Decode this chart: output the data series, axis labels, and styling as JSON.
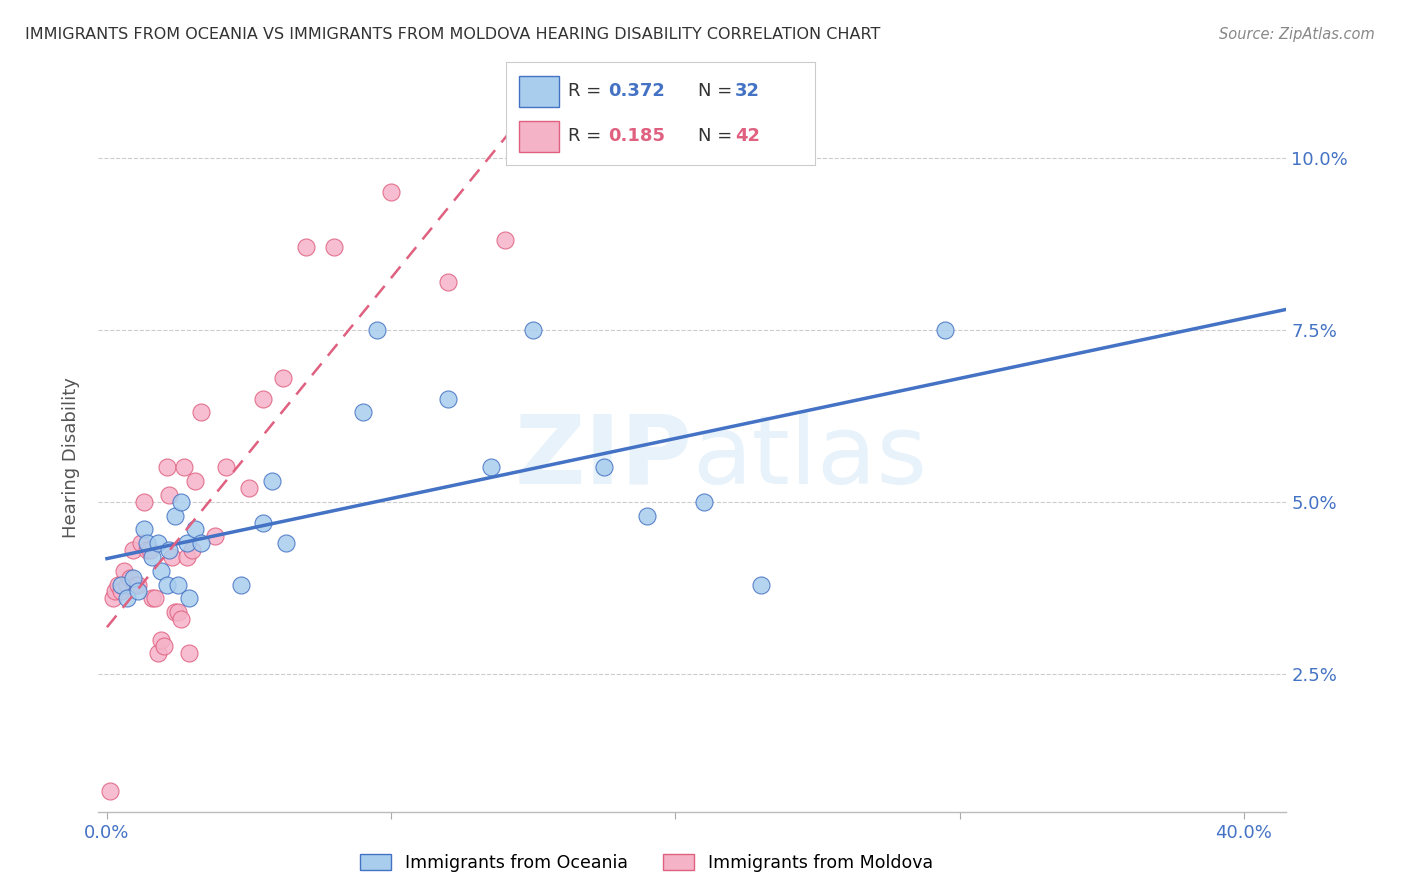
{
  "title": "IMMIGRANTS FROM OCEANIA VS IMMIGRANTS FROM MOLDOVA HEARING DISABILITY CORRELATION CHART",
  "source": "Source: ZipAtlas.com",
  "ylabel": "Hearing Disability",
  "watermark": "ZIPatlas",
  "legend_r1": "0.372",
  "legend_n1": "32",
  "legend_r2": "0.185",
  "legend_n2": "42",
  "color_oceania": "#A8CDED",
  "color_moldova": "#F5B3C8",
  "color_line_oceania": "#4472C4",
  "color_line_moldova": "#E06080",
  "ymin": 0.005,
  "ymax": 0.108,
  "xmin": -0.003,
  "xmax": 0.415,
  "yticks": [
    0.025,
    0.05,
    0.075,
    0.1
  ],
  "ytick_labels": [
    "2.5%",
    "5.0%",
    "7.5%",
    "10.0%"
  ],
  "xticks": [
    0.0,
    0.1,
    0.2,
    0.3,
    0.4
  ],
  "xtick_labels": [
    "0.0%",
    "",
    "",
    "",
    "40.0%"
  ],
  "oceania_x": [
    0.005,
    0.007,
    0.009,
    0.011,
    0.013,
    0.014,
    0.016,
    0.018,
    0.019,
    0.021,
    0.022,
    0.024,
    0.025,
    0.026,
    0.028,
    0.029,
    0.031,
    0.033,
    0.047,
    0.055,
    0.058,
    0.063,
    0.09,
    0.095,
    0.12,
    0.135,
    0.15,
    0.175,
    0.19,
    0.21,
    0.23,
    0.295
  ],
  "oceania_y": [
    0.038,
    0.036,
    0.039,
    0.037,
    0.046,
    0.044,
    0.042,
    0.044,
    0.04,
    0.038,
    0.043,
    0.048,
    0.038,
    0.05,
    0.044,
    0.036,
    0.046,
    0.044,
    0.038,
    0.047,
    0.053,
    0.044,
    0.063,
    0.075,
    0.065,
    0.055,
    0.075,
    0.055,
    0.048,
    0.05,
    0.038,
    0.075
  ],
  "moldova_x": [
    0.001,
    0.002,
    0.003,
    0.004,
    0.005,
    0.006,
    0.007,
    0.008,
    0.009,
    0.01,
    0.011,
    0.012,
    0.013,
    0.014,
    0.015,
    0.016,
    0.017,
    0.018,
    0.019,
    0.02,
    0.021,
    0.022,
    0.023,
    0.024,
    0.025,
    0.026,
    0.027,
    0.028,
    0.029,
    0.03,
    0.031,
    0.033,
    0.038,
    0.042,
    0.05,
    0.055,
    0.062,
    0.07,
    0.08,
    0.1,
    0.12,
    0.14
  ],
  "moldova_y": [
    0.008,
    0.036,
    0.037,
    0.038,
    0.037,
    0.04,
    0.038,
    0.039,
    0.043,
    0.038,
    0.038,
    0.044,
    0.05,
    0.043,
    0.043,
    0.036,
    0.036,
    0.028,
    0.03,
    0.029,
    0.055,
    0.051,
    0.042,
    0.034,
    0.034,
    0.033,
    0.055,
    0.042,
    0.028,
    0.043,
    0.053,
    0.063,
    0.045,
    0.055,
    0.052,
    0.065,
    0.068,
    0.087,
    0.087,
    0.095,
    0.082,
    0.088
  ]
}
